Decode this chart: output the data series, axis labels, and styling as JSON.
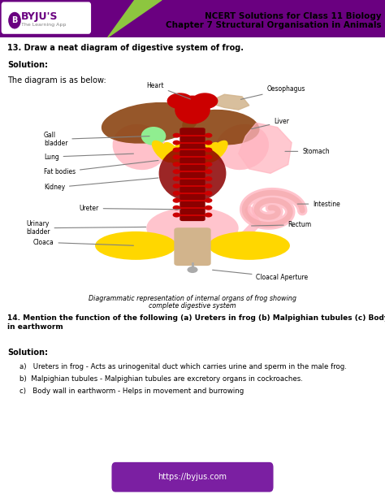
{
  "bg_color": "#ffffff",
  "header_bar_color": "#6a0080",
  "header_bar_green": "#8dc63f",
  "header_title_line1": "NCERT Solutions for Class 11 Biology",
  "header_title_line2": "Chapter 7 Structural Organisation in Animals",
  "logo_text": "BYJU'S",
  "logo_sub": "The Learning App",
  "q13_text": "13. Draw a neat diagram of digestive system of frog.",
  "solution_label": "Solution:",
  "diagram_caption_line1": "The diagram is as below:",
  "diagram_note_line1": "Diagrammatic representation of internal organs of frog showing",
  "diagram_note_line2": "complete digestive system",
  "q14_text": "14. Mention the function of the following (a) Ureters in frog (b) Malpighian tubules (c) Body wall\nin earthworm",
  "solution14_label": "Solution:",
  "answer_a": "a)   Ureters in frog - Acts as urinogenital duct which carries urine and sperm in the male frog.",
  "answer_b": "b)  Malpighian tubules - Malpighian tubules are excretory organs in cockroaches.",
  "answer_c": "c)   Body wall in earthworm - Helps in movement and burrowing",
  "footer_text": "https://byjus.com",
  "footer_bg": "#7b1fa2",
  "footer_text_color": "#ffffff"
}
